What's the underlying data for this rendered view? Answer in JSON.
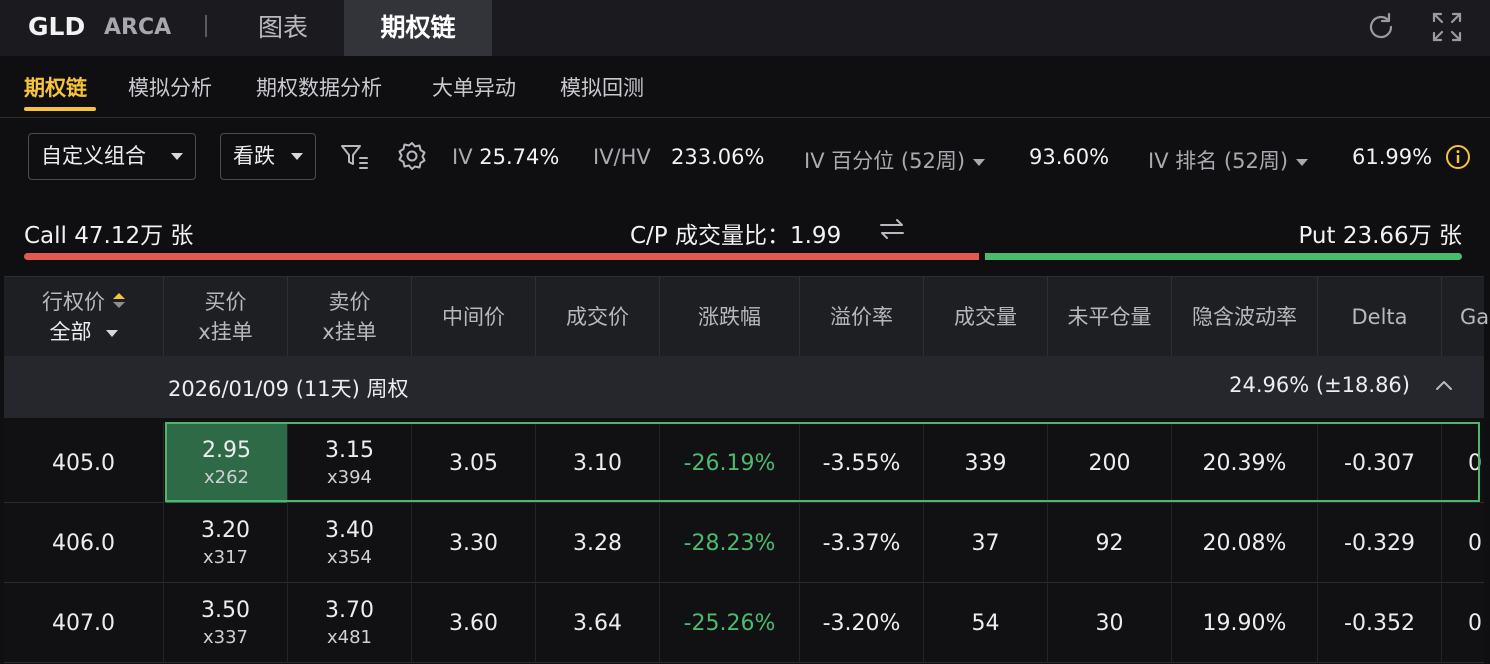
{
  "header": {
    "ticker": "GLD",
    "exchange": "ARCA",
    "tabs": [
      {
        "label": "图表",
        "active": false
      },
      {
        "label": "期权链",
        "active": true
      }
    ],
    "icons": [
      "refresh-icon",
      "expand-icon"
    ]
  },
  "subtabs": [
    {
      "label": "期权链",
      "active": true
    },
    {
      "label": "模拟分析",
      "active": false
    },
    {
      "label": "期权数据分析",
      "active": false
    },
    {
      "label": "大单异动",
      "active": false
    },
    {
      "label": "模拟回测",
      "active": false
    }
  ],
  "filters": {
    "strategy": "自定义组合",
    "direction": "看跌"
  },
  "metrics": {
    "iv_label": "IV",
    "iv_value": "25.74%",
    "ivhv_label": "IV/HV",
    "ivhv_value": "233.06%",
    "iv_pct_label": "IV 百分位 (52周)",
    "iv_pct_value": "93.60%",
    "iv_rank_label": "IV 排名 (52周)",
    "iv_rank_value": "61.99%"
  },
  "volume": {
    "call": "Call 47.12万 张",
    "ratio": "C/P 成交量比：1.99",
    "put": "Put 23.66万 张",
    "call_share": 0.667,
    "call_color": "#e05a52",
    "put_color": "#4cba6e"
  },
  "table": {
    "headers": {
      "strike": "行权价",
      "strike_filter": "全部",
      "bid_l1": "买价",
      "bid_l2": "x挂单",
      "ask_l1": "卖价",
      "ask_l2": "x挂单",
      "mid": "中间价",
      "last": "成交价",
      "change": "涨跌幅",
      "premium": "溢价率",
      "volume": "成交量",
      "oi": "未平仓量",
      "iv": "隐含波动率",
      "delta": "Delta",
      "gamma": "Ga"
    },
    "group": {
      "title": "2026/01/09 (11天) 周权",
      "iv": "24.96%  (±18.86)"
    },
    "rows": [
      {
        "strike": "405.0",
        "bid": "2.95",
        "bid_size": "x262",
        "ask": "3.15",
        "ask_size": "x394",
        "mid": "3.05",
        "last": "3.10",
        "change": "-26.19%",
        "premium": "-3.55%",
        "volume": "339",
        "oi": "200",
        "iv": "20.39%",
        "delta": "-0.307",
        "gamma": "0"
      },
      {
        "strike": "406.0",
        "bid": "3.20",
        "bid_size": "x317",
        "ask": "3.40",
        "ask_size": "x354",
        "mid": "3.30",
        "last": "3.28",
        "change": "-28.23%",
        "premium": "-3.37%",
        "volume": "37",
        "oi": "92",
        "iv": "20.08%",
        "delta": "-0.329",
        "gamma": "0"
      },
      {
        "strike": "407.0",
        "bid": "3.50",
        "bid_size": "x337",
        "ask": "3.70",
        "ask_size": "x481",
        "mid": "3.60",
        "last": "3.64",
        "change": "-25.26%",
        "premium": "-3.20%",
        "volume": "54",
        "oi": "30",
        "iv": "19.90%",
        "delta": "-0.352",
        "gamma": "0"
      }
    ]
  }
}
